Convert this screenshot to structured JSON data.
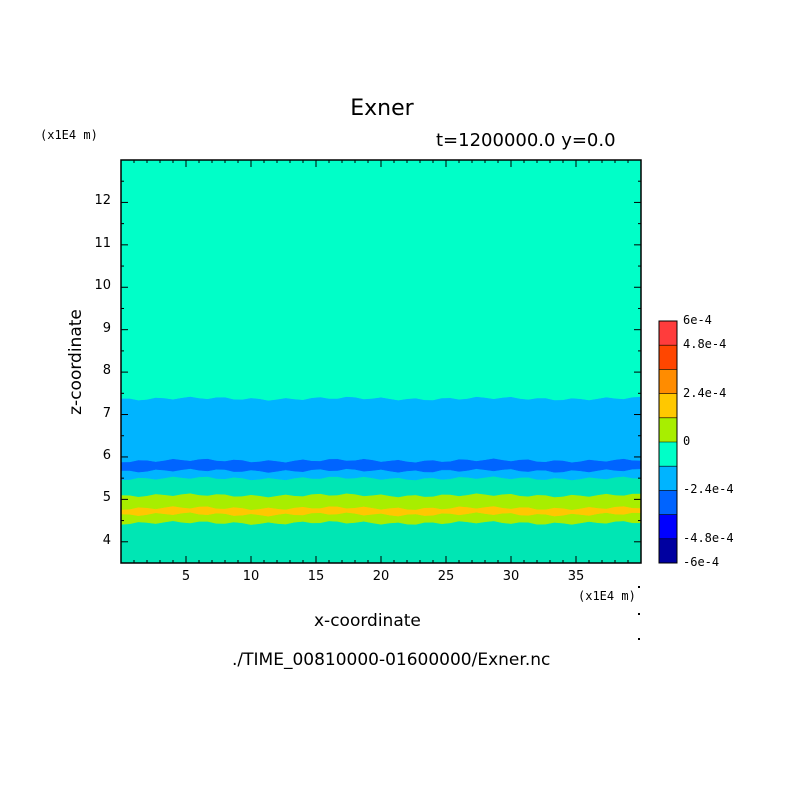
{
  "chart_data": {
    "type": "heatmap",
    "title": "Exner",
    "subtitle": "t=1200000.0 y=0.0",
    "xlabel": "x-coordinate",
    "ylabel": "z-coordinate",
    "x_unit_label": "(x1E4 m)",
    "y_unit_label": "(x1E4 m)",
    "xlim": [
      0,
      40
    ],
    "ylim": [
      3.5,
      13
    ],
    "x_ticks": [
      5,
      10,
      15,
      20,
      25,
      30,
      35
    ],
    "y_ticks": [
      4,
      5,
      6,
      7,
      8,
      9,
      10,
      11,
      12
    ],
    "bands": [
      {
        "z_min": 3.5,
        "z_max": 4.45,
        "value_range": [
          -0.00012,
          0
        ],
        "color": "#00e6b4"
      },
      {
        "z_min": 4.45,
        "z_max": 4.65,
        "value_range": [
          0,
          0.00012
        ],
        "color": "#a8ee00"
      },
      {
        "z_min": 4.65,
        "z_max": 4.8,
        "value_range": [
          0.00012,
          0.00024
        ],
        "color": "#ffc800"
      },
      {
        "z_min": 4.8,
        "z_max": 5.1,
        "value_range": [
          0,
          0.00012
        ],
        "color": "#a8ee00"
      },
      {
        "z_min": 5.1,
        "z_max": 5.5,
        "value_range": [
          -0.00012,
          0
        ],
        "color": "#00e6b4"
      },
      {
        "z_min": 5.5,
        "z_max": 5.68,
        "value_range": [
          -0.00024,
          -0.00012
        ],
        "color": "#00b4ff"
      },
      {
        "z_min": 5.68,
        "z_max": 5.92,
        "value_range": [
          -0.00036,
          -0.00024
        ],
        "color": "#0064ff"
      },
      {
        "z_min": 5.92,
        "z_max": 7.38,
        "value_range": [
          -0.00024,
          -0.00012
        ],
        "color": "#00b4ff"
      },
      {
        "z_min": 7.38,
        "z_max": 13,
        "value_range": [
          -0.00012,
          0
        ],
        "color": "#00ffc8"
      }
    ],
    "colorbar": {
      "labels": [
        "6e-4",
        "4.8e-4",
        "2.4e-4",
        "0",
        "-2.4e-4",
        "-4.8e-4",
        "-6e-4"
      ],
      "label_values": [
        0.0006,
        0.00048,
        0.00024,
        0,
        -0.00024,
        -0.00048,
        -0.0006
      ],
      "levels": [
        -0.0006,
        -0.00048,
        -0.00036,
        -0.00024,
        -0.00012,
        0,
        0.00012,
        0.00024,
        0.00036,
        0.00048,
        0.0006
      ],
      "colors": [
        "#0000a0",
        "#0000ff",
        "#0064ff",
        "#00b4ff",
        "#00ffc8",
        "#a8ee00",
        "#ffc800",
        "#ff8c00",
        "#ff4600",
        "#ff3c3c"
      ]
    },
    "grid": false,
    "legend_placement": "right"
  },
  "footer": {
    "filename": "./TIME_00810000-01600000/Exner.nc"
  }
}
